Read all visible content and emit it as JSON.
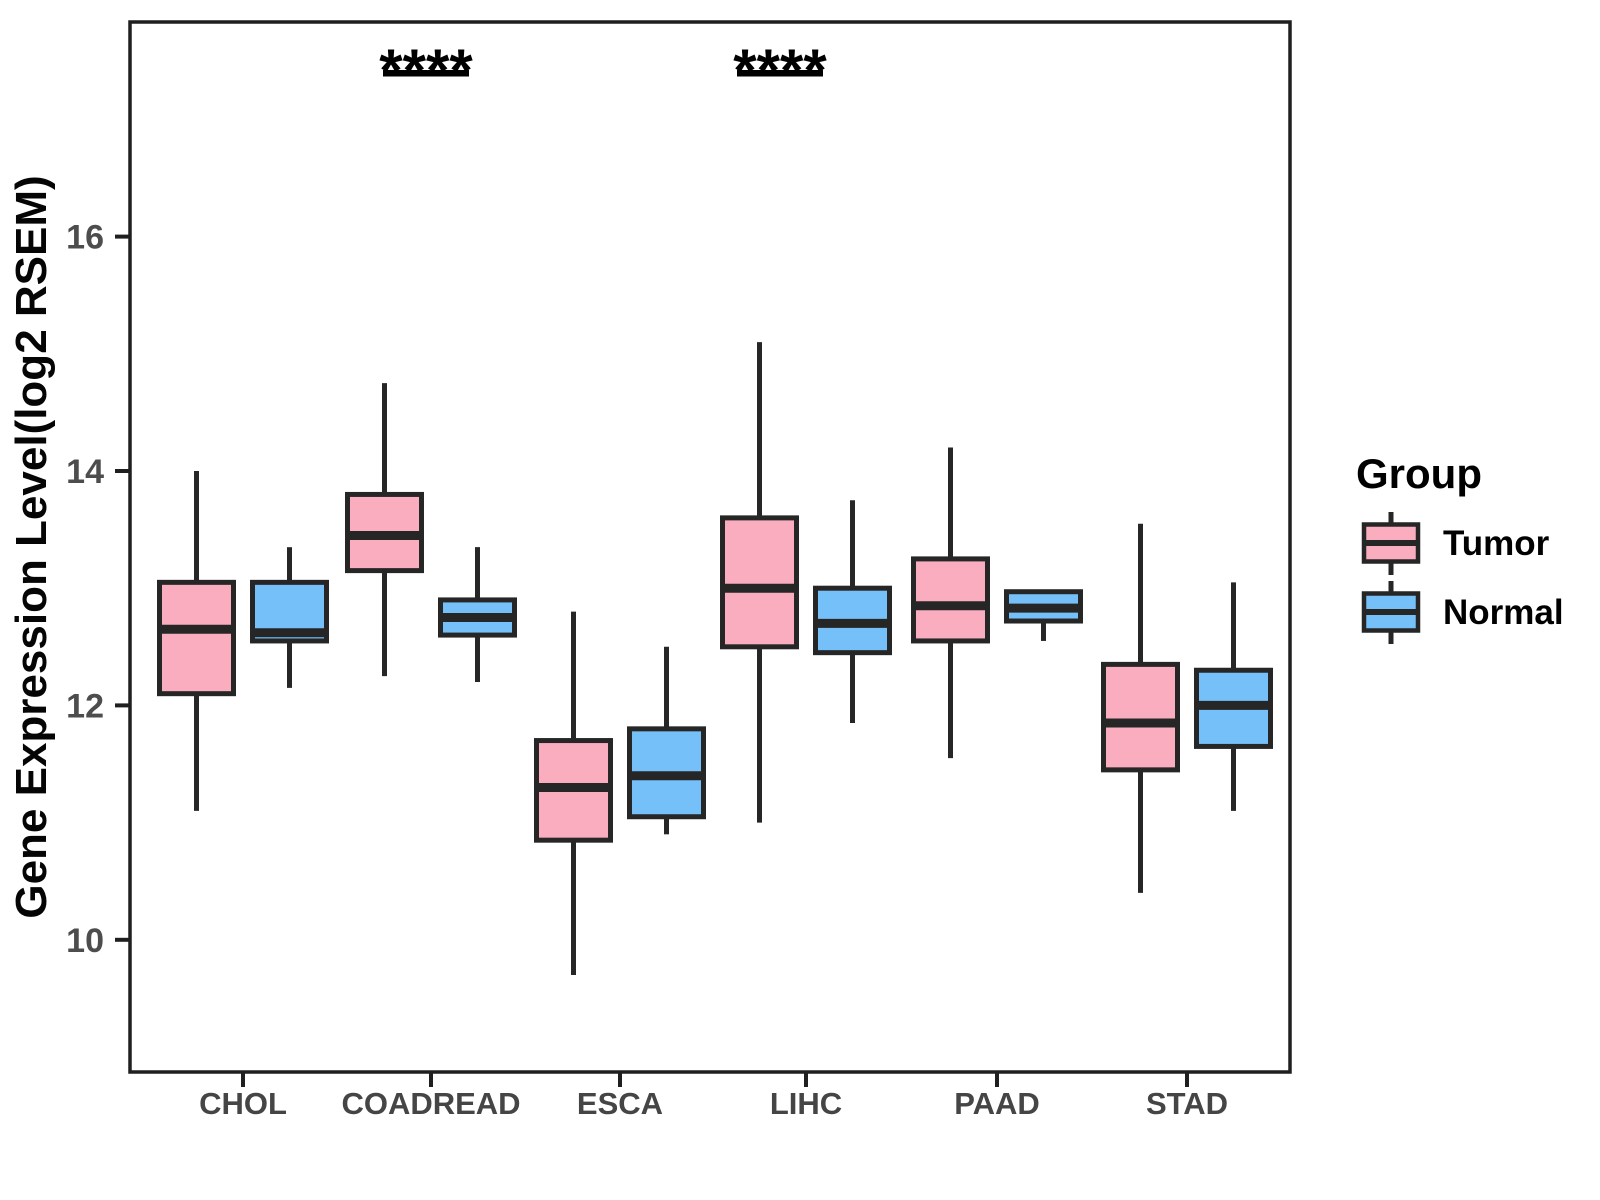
{
  "figure": {
    "background": "#ffffff",
    "panel_border_color": "#1f1f1f",
    "box_line_color": "#262626"
  },
  "axes": {
    "y_label": "Gene Expression Level(log2 RSEM)",
    "y_ticks": [
      {
        "label": "16",
        "value": 16
      },
      {
        "label": "14",
        "value": 14
      },
      {
        "label": "12",
        "value": 12
      },
      {
        "label": "10",
        "value": 10
      }
    ],
    "x_categories": [
      "CHOL",
      "COADREAD",
      "ESCA",
      "LIHC",
      "PAAD",
      "STAD"
    ],
    "tick_label_color": "#4d4d4d"
  },
  "legend": {
    "title": "Group",
    "entries": [
      {
        "label": "Tumor",
        "color": "#FAADBF"
      },
      {
        "label": "Normal",
        "color": "#75C0F8"
      }
    ]
  },
  "significance": [
    {
      "label": "****",
      "category": "COADREAD",
      "dx": -5
    },
    {
      "label": "****",
      "category": "LIHC",
      "dx": -26
    }
  ],
  "chart_data": {
    "type": "boxplot",
    "title": "",
    "xlabel": "",
    "ylabel": "Gene Expression Level(log2 RSEM)",
    "ylim": [
      8.9,
      17.8
    ],
    "y_tick_values": [
      10,
      12,
      14,
      16
    ],
    "grid": false,
    "legend_position": "right",
    "categories": [
      "CHOL",
      "COADREAD",
      "ESCA",
      "LIHC",
      "PAAD",
      "STAD"
    ],
    "series": [
      {
        "name": "Tumor",
        "color": "#FAADBF",
        "stats": [
          {
            "min": 11.1,
            "q1": 12.1,
            "median": 12.65,
            "q3": 13.05,
            "max": 14.0
          },
          {
            "min": 12.25,
            "q1": 13.15,
            "median": 13.45,
            "q3": 13.8,
            "max": 14.75
          },
          {
            "min": 9.7,
            "q1": 10.85,
            "median": 11.3,
            "q3": 11.7,
            "max": 12.8
          },
          {
            "min": 11.0,
            "q1": 12.5,
            "median": 13.0,
            "q3": 13.6,
            "max": 15.1
          },
          {
            "min": 11.55,
            "q1": 12.55,
            "median": 12.85,
            "q3": 13.25,
            "max": 14.2
          },
          {
            "min": 10.4,
            "q1": 11.45,
            "median": 11.85,
            "q3": 12.35,
            "max": 13.55
          }
        ]
      },
      {
        "name": "Normal",
        "color": "#75C0F8",
        "stats": [
          {
            "min": 12.15,
            "q1": 12.55,
            "median": 12.62,
            "q3": 13.05,
            "max": 13.35
          },
          {
            "min": 12.2,
            "q1": 12.6,
            "median": 12.75,
            "q3": 12.9,
            "max": 13.35
          },
          {
            "min": 10.9,
            "q1": 11.05,
            "median": 11.4,
            "q3": 11.8,
            "max": 12.5
          },
          {
            "min": 11.85,
            "q1": 12.45,
            "median": 12.7,
            "q3": 13.0,
            "max": 13.75
          },
          {
            "min": 12.55,
            "q1": 12.72,
            "median": 12.83,
            "q3": 12.97,
            "max": 12.97
          },
          {
            "min": 11.1,
            "q1": 11.65,
            "median": 12.0,
            "q3": 12.3,
            "max": 13.05
          }
        ]
      }
    ],
    "annotations": [
      {
        "text": "****",
        "over": "COADREAD"
      },
      {
        "text": "****",
        "over": "LIHC"
      }
    ]
  }
}
